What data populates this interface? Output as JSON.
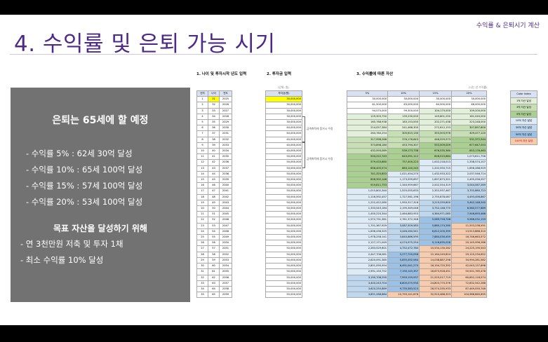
{
  "slide": {
    "title": "4. 수익률 및 은퇴 가능 시기",
    "subtitle": "수익률 & 은퇴시기 계산"
  },
  "panel": {
    "heading": "은퇴는 65세에 할 예정",
    "lines": [
      "- 수익률 5% : 62세 30억 달성",
      "- 수익률 10% : 65세 100억 달성",
      "- 수익률 15% : 57세 100억 달성",
      "- 수익률 20% : 53세 100억 달성"
    ],
    "goal_title": "목표 자산을 달성하기 위해",
    "goal_lines": [
      "- 연 3천만원 저축 및 투자 1채",
      "- 최소 수익률 10% 달성"
    ]
  },
  "headers": {
    "t1": "1. 나이 및 투자시작 년도 입력",
    "t2": "2. 투자금 입력",
    "t3": "3. 수익률에 따른 자산"
  },
  "notes": {
    "unit": "(단위: 원)",
    "yearend": "(나는 년 수익률)"
  },
  "annotations": {
    "a1": "금액축적에 증거시 수정",
    "a2": "금액축적에 증거시 수정"
  },
  "table1": {
    "columns": [
      "년차",
      "나이",
      "연도"
    ],
    "highlight_age_row": 0
  },
  "table2": {
    "column": "투자금(원)"
  },
  "table3": {
    "columns": [
      "5%",
      "10%",
      "15%",
      "20%"
    ]
  },
  "color_index": {
    "title": "Color Index",
    "items": [
      {
        "label": "1억 자산 달성",
        "color": "#e2f0d9"
      },
      {
        "label": "3억 자산 달성",
        "color": "#c6e0b4"
      },
      {
        "label": "5억 자산 달성",
        "color": "#a9d08e"
      },
      {
        "label": "10억 자산 달성",
        "color": "#ddebf7"
      },
      {
        "label": "30억 자산 달성",
        "color": "#bdd7ee"
      },
      {
        "label": "50억 자산 달성",
        "color": "#9bc2e6"
      },
      {
        "label": "100억 자산 달성",
        "color": "#f8cbad"
      }
    ]
  },
  "rows": [
    {
      "n": "1",
      "age": "31",
      "year": "2025",
      "inv": "30,000,000",
      "r5": "30,000,000",
      "r10": "30,000,000",
      "r15": "30,000,000",
      "r20": "30,000,000"
    },
    {
      "n": "2",
      "age": "32",
      "year": "2026",
      "inv": "30,000,000",
      "r5": "61,500,000",
      "r10": "63,000,000",
      "r15": "64,500,000",
      "r20": "66,000,000"
    },
    {
      "n": "3",
      "age": "33",
      "year": "2027",
      "inv": "30,000,000",
      "r5": "94,575,000",
      "r10": "99,300,000",
      "r15": "104,175,000",
      "r20": "109,200,000"
    },
    {
      "n": "4",
      "age": "34",
      "year": "2028",
      "inv": "30,000,000",
      "r5": "129,303,750",
      "r10": "139,230,000",
      "r15": "149,801,250",
      "r20": "161,040,000"
    },
    {
      "n": "5",
      "age": "35",
      "year": "2029",
      "inv": "30,000,000",
      "r5": "165,768,938",
      "r10": "183,153,000",
      "r15": "202,271,438",
      "r20": "223,248,000"
    },
    {
      "n": "6",
      "age": "36",
      "year": "2030",
      "inv": "40,000,000",
      "r5": "214,057,384",
      "r10": "241,468,300",
      "r15": "272,612,153",
      "r20": "307,897,600"
    },
    {
      "n": "7",
      "age": "37",
      "year": "2031",
      "inv": "40,000,000",
      "r5": "264,760,254",
      "r10": "305,615,130",
      "r15": "353,503,976",
      "r20": "409,477,120"
    },
    {
      "n": "8",
      "age": "38",
      "year": "2032",
      "inv": "40,000,000",
      "r5": "317,998,266",
      "r10": "376,176,643",
      "r15": "446,529,573",
      "r20": "531,372,544"
    },
    {
      "n": "9",
      "age": "39",
      "year": "2033",
      "inv": "40,000,000",
      "r5": "373,898,180",
      "r10": "453,794,307",
      "r15": "553,509,009",
      "r20": "677,647,053"
    },
    {
      "n": "10",
      "age": "40",
      "year": "2034",
      "inv": "40,000,000",
      "r5": "432,593,089",
      "r10": "539,173,738",
      "r15": "676,535,360",
      "r20": "853,176,463"
    },
    {
      "n": "11",
      "age": "41",
      "year": "2035",
      "inv": "50,000,000",
      "r5": "504,222,743",
      "r10": "643,091,112",
      "r15": "828,015,664",
      "r20": "1,073,811,756"
    },
    {
      "n": "12",
      "age": "42",
      "year": "2036",
      "inv": "50,000,000",
      "r5": "579,433,880",
      "r10": "757,400,223",
      "r15": "1,002,218,013",
      "r20": "1,338,574,107"
    },
    {
      "n": "13",
      "age": "43",
      "year": "2037",
      "inv": "50,000,000",
      "r5": "658,405,574",
      "r10": "883,140,245",
      "r15": "1,202,550,715",
      "r20": "1,656,288,929"
    },
    {
      "n": "14",
      "age": "44",
      "year": "2038",
      "inv": "50,000,000",
      "r5": "741,325,853",
      "r10": "1,021,454,270",
      "r15": "1,432,933,322",
      "r20": "2,037,546,714"
    },
    {
      "n": "15",
      "age": "45",
      "year": "2039",
      "inv": "50,000,000",
      "r5": "828,392,146",
      "r10": "1,173,599,697",
      "r15": "1,697,873,321",
      "r20": "2,495,056,057"
    },
    {
      "n": "16",
      "age": "46",
      "year": "2040",
      "inv": "50,000,000",
      "r5": "919,811,753",
      "r10": "1,340,959,667",
      "r15": "2,002,554,319",
      "r20": "3,044,067,269"
    },
    {
      "n": "17",
      "age": "47",
      "year": "2041",
      "inv": "50,000,000",
      "r5": "1,015,802,340",
      "r10": "1,525,055,633",
      "r15": "2,352,937,467",
      "r20": "3,702,880,723"
    },
    {
      "n": "18",
      "age": "48",
      "year": "2042",
      "inv": "50,000,000",
      "r5": "1,116,592,457",
      "r10": "1,727,561,196",
      "r15": "2,755,878,087",
      "r20": "4,493,456,867"
    },
    {
      "n": "19",
      "age": "49",
      "year": "2043",
      "inv": "50,000,000",
      "r5": "1,222,422,080",
      "r10": "1,950,317,316",
      "r15": "3,219,259,800",
      "r20": "5,442,148,240"
    },
    {
      "n": "20",
      "age": "50",
      "year": "2044",
      "inv": "50,000,000",
      "r5": "1,333,543,184",
      "r10": "2,195,349,048",
      "r15": "3,752,148,770",
      "r20": "6,580,577,889"
    },
    {
      "n": "21",
      "age": "51",
      "year": "2045",
      "inv": "50,000,000",
      "r5": "1,450,220,344",
      "r10": "2,464,883,953",
      "r15": "4,364,971,085",
      "r20": "7,946,693,466"
    },
    {
      "n": "22",
      "age": "52",
      "year": "2046",
      "inv": "50,000,000",
      "r5": "1,572,731,361",
      "r10": "2,761,372,348",
      "r15": "5,069,716,748",
      "r20": "9,586,032,159"
    },
    {
      "n": "23",
      "age": "53",
      "year": "2047",
      "inv": "50,000,000",
      "r5": "1,701,367,929",
      "r10": "3,087,509,583",
      "r15": "5,880,174,260",
      "r20": "11,553,238,591"
    },
    {
      "n": "24",
      "age": "54",
      "year": "2048",
      "inv": "50,000,000",
      "r5": "1,836,436,325",
      "r10": "3,446,260,541",
      "r15": "6,812,200,399",
      "r20": "13,913,886,310"
    },
    {
      "n": "25",
      "age": "55",
      "year": "2049",
      "inv": "50,000,000",
      "r5": "1,978,258,141",
      "r10": "3,840,886,595",
      "r15": "7,884,030,459",
      "r20": "16,746,663,572"
    },
    {
      "n": "26",
      "age": "56",
      "year": "2050",
      "inv": "50,000,000",
      "r5": "2,127,171,049",
      "r10": "4,274,975,254",
      "r15": "9,116,635,028",
      "r20": "20,145,996,286"
    },
    {
      "n": "27",
      "age": "57",
      "year": "2051",
      "inv": "50,000,000",
      "r5": "2,283,529,601",
      "r10": "4,752,472,780",
      "r15": "10,534,130,282",
      "r20": "24,225,195,543"
    },
    {
      "n": "28",
      "age": "58",
      "year": "2052",
      "inv": "50,000,000",
      "r5": "2,447,706,081",
      "r10": "5,277,720,058",
      "r15": "12,164,249,824",
      "r20": "29,120,234,652"
    },
    {
      "n": "29",
      "age": "59",
      "year": "2053",
      "inv": "50,000,000",
      "r5": "2,620,091,385",
      "r10": "5,855,492,064",
      "r15": "14,038,887,298",
      "r20": "34,994,281,582"
    },
    {
      "n": "30",
      "age": "60",
      "year": "2054",
      "inv": "50,000,000",
      "r5": "2,801,095,954",
      "r10": "6,491,041,270",
      "r15": "16,194,720,392",
      "r20": "42,043,137,898"
    },
    {
      "n": "31",
      "age": "61",
      "year": "2055",
      "inv": "50,000,000",
      "r5": "2,991,150,752",
      "r10": "7,190,145,397",
      "r15": "18,673,928,451",
      "r20": "50,501,765,478"
    },
    {
      "n": "32",
      "age": "62",
      "year": "2056",
      "inv": "50,000,000",
      "r5": "3,190,708,290",
      "r10": "7,959,159,937",
      "r15": "21,525,017,719",
      "r20": "60,652,118,574"
    },
    {
      "n": "33",
      "age": "63",
      "year": "2057",
      "inv": "50,000,000",
      "r5": "3,400,243,704",
      "r10": "8,805,075,930",
      "r15": "24,803,770,376",
      "r20": "72,832,542,288"
    },
    {
      "n": "34",
      "age": "64",
      "year": "2058",
      "inv": "50,000,000",
      "r5": "3,620,255,889",
      "r10": "9,735,583,523",
      "r15": "28,574,335,933",
      "r20": "87,449,050,746"
    },
    {
      "n": "35",
      "age": "65",
      "year": "2059",
      "inv": "50,000,000",
      "r5": "3,851,268,684",
      "r10": "10,759,141,876",
      "r15": "32,910,486,323",
      "r20": "104,988,860,895"
    }
  ]
}
